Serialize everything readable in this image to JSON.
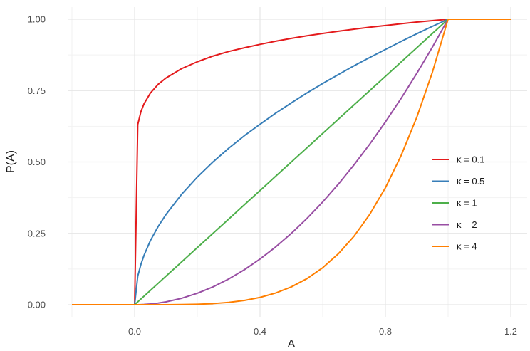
{
  "chart_data": {
    "type": "line",
    "xlabel": "A",
    "ylabel": "P(A)",
    "xlim": [
      -0.2,
      1.2
    ],
    "ylim": [
      0,
      1
    ],
    "x_ticks": [
      0.0,
      0.4,
      0.8,
      1.2
    ],
    "x_tick_labels": [
      "0.0",
      "0.4",
      "0.8",
      "1.2"
    ],
    "y_ticks": [
      0,
      0.25,
      0.5,
      0.75,
      1.0
    ],
    "y_tick_labels": [
      "0.00",
      "0.25",
      "0.50",
      "0.75",
      "1.00"
    ],
    "grid": true,
    "legend_position": "right",
    "x": [
      -0.2,
      -0.15,
      -0.1,
      -0.05,
      0.0,
      0.01,
      0.02,
      0.03,
      0.05,
      0.075,
      0.1,
      0.15,
      0.2,
      0.25,
      0.3,
      0.35,
      0.4,
      0.45,
      0.5,
      0.55,
      0.6,
      0.65,
      0.7,
      0.75,
      0.8,
      0.85,
      0.9,
      0.95,
      1.0,
      1.05,
      1.1,
      1.15,
      1.2
    ],
    "series": [
      {
        "name": "κ = 0.1",
        "color": "#e41a1c",
        "values": [
          0,
          0,
          0,
          0,
          0,
          0.631,
          0.676,
          0.704,
          0.741,
          0.772,
          0.794,
          0.827,
          0.851,
          0.871,
          0.887,
          0.9,
          0.912,
          0.923,
          0.933,
          0.942,
          0.95,
          0.958,
          0.965,
          0.972,
          0.978,
          0.984,
          0.99,
          0.995,
          1,
          1,
          1,
          1,
          1
        ]
      },
      {
        "name": "κ = 0.5",
        "color": "#377eb8",
        "values": [
          0,
          0,
          0,
          0,
          0,
          0.1,
          0.141,
          0.173,
          0.224,
          0.274,
          0.316,
          0.387,
          0.447,
          0.5,
          0.548,
          0.592,
          0.632,
          0.671,
          0.707,
          0.742,
          0.775,
          0.806,
          0.837,
          0.866,
          0.894,
          0.922,
          0.949,
          0.975,
          1,
          1,
          1,
          1,
          1
        ]
      },
      {
        "name": "κ = 1",
        "color": "#4daf4a",
        "values": [
          0,
          0,
          0,
          0,
          0,
          0.01,
          0.02,
          0.03,
          0.05,
          0.075,
          0.1,
          0.15,
          0.2,
          0.25,
          0.3,
          0.35,
          0.4,
          0.45,
          0.5,
          0.55,
          0.6,
          0.65,
          0.7,
          0.75,
          0.8,
          0.85,
          0.9,
          0.95,
          1,
          1,
          1,
          1,
          1
        ]
      },
      {
        "name": "κ = 2",
        "color": "#984ea3",
        "values": [
          0,
          0,
          0,
          0,
          0,
          0.0001,
          0.0004,
          0.0009,
          0.0025,
          0.0056,
          0.01,
          0.0225,
          0.04,
          0.0625,
          0.09,
          0.1225,
          0.16,
          0.2025,
          0.25,
          0.3025,
          0.36,
          0.4225,
          0.49,
          0.5625,
          0.64,
          0.7225,
          0.81,
          0.9025,
          1,
          1,
          1,
          1,
          1
        ]
      },
      {
        "name": "κ = 4",
        "color": "#ff7f00",
        "values": [
          0,
          0,
          0,
          0,
          0,
          0,
          0,
          0,
          0,
          0,
          0.0001,
          0.0005,
          0.0016,
          0.0039,
          0.0081,
          0.015,
          0.0256,
          0.041,
          0.0625,
          0.0915,
          0.1296,
          0.1785,
          0.2401,
          0.3164,
          0.4096,
          0.522,
          0.6561,
          0.8145,
          1,
          1,
          1,
          1,
          1
        ]
      }
    ]
  }
}
